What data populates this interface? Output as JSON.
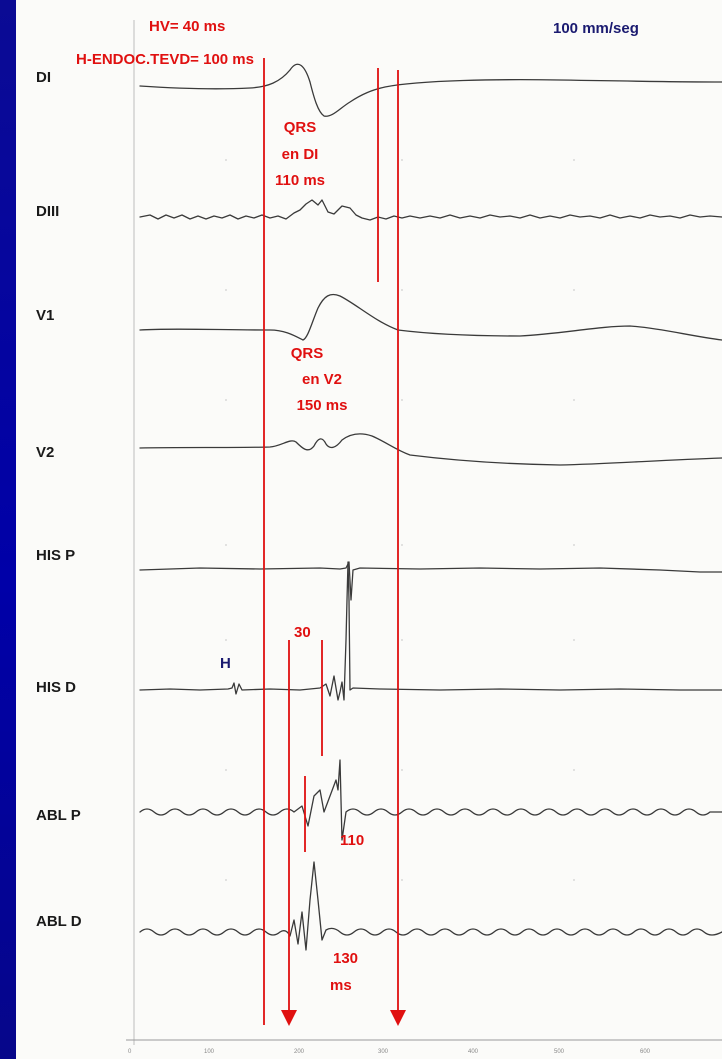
{
  "speed_label": "100 mm/seg",
  "hv_label": "HV= 40 ms",
  "h_endoc_label": "H-ENDOC.TEVD= 100 ms",
  "qrs_di": {
    "line1": "QRS",
    "line2": "en DI",
    "line3": "110 ms"
  },
  "qrs_v2": {
    "line1": "QRS",
    "line2": "en V2",
    "line3": "150 ms"
  },
  "his_marker": "H",
  "interval_30": "30",
  "interval_110": "110",
  "interval_130": {
    "line1": "130",
    "line2": "ms"
  },
  "leads": [
    {
      "id": "di",
      "label": "DI"
    },
    {
      "id": "diii",
      "label": "DIII"
    },
    {
      "id": "v1",
      "label": "V1"
    },
    {
      "id": "v2",
      "label": "V2"
    },
    {
      "id": "his-p",
      "label": "HIS P"
    },
    {
      "id": "his-d",
      "label": "HIS D"
    },
    {
      "id": "abl-p",
      "label": "ABL P"
    },
    {
      "id": "abl-d",
      "label": "ABL D"
    }
  ],
  "time_axis_ticks": [
    "0",
    "100",
    "200",
    "300",
    "400",
    "500",
    "600"
  ],
  "colors": {
    "slide_background": "#0a0a8c",
    "annotation_red": "#e01010",
    "annotation_blue": "#1a1a70",
    "trace": "#3a3a3a"
  }
}
